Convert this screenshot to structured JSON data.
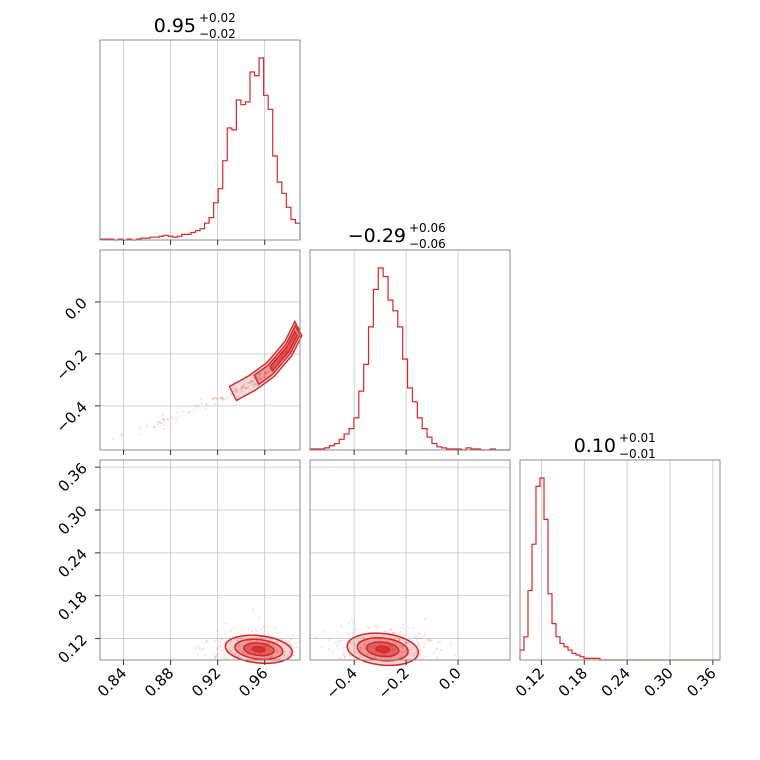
{
  "chart_data": {
    "type": "corner",
    "color": "#d62728",
    "parameters": 3,
    "titles": [
      {
        "value": "0.95",
        "plus": "+0.02",
        "minus": "−0.02"
      },
      {
        "value": "−0.29",
        "plus": "+0.06",
        "minus": "−0.06"
      },
      {
        "value": "0.10",
        "plus": "+0.01",
        "minus": "−0.01"
      }
    ],
    "ranges": [
      [
        0.82,
        0.99
      ],
      [
        -0.57,
        0.2
      ],
      [
        0.09,
        0.37
      ]
    ],
    "ticks": [
      {
        "values": [
          0.84,
          0.88,
          0.92,
          0.96
        ],
        "labels": [
          "0.84",
          "0.88",
          "0.92",
          "0.96"
        ]
      },
      {
        "values": [
          -0.4,
          -0.2,
          0.0
        ],
        "labels": [
          "−0.4",
          "−0.2",
          "0.0"
        ]
      },
      {
        "values": [
          0.12,
          0.18,
          0.24,
          0.3,
          0.36
        ],
        "labels": [
          "0.12",
          "0.18",
          "0.24",
          "0.30",
          "0.36"
        ]
      }
    ],
    "histograms": [
      {
        "edges": [
          0.82,
          0.99
        ],
        "counts": [
          1,
          1,
          1,
          0,
          1,
          0,
          1,
          0,
          1,
          2,
          2,
          3,
          3,
          4,
          5,
          4,
          3,
          4,
          6,
          6,
          8,
          10,
          12,
          18,
          24,
          40,
          55,
          85,
          120,
          118,
          150,
          145,
          148,
          180,
          176,
          195,
          155,
          140,
          90,
          62,
          50,
          35,
          22,
          18
        ]
      },
      {
        "edges": [
          -0.57,
          0.2
        ],
        "counts": [
          1,
          1,
          1,
          2,
          4,
          6,
          10,
          15,
          20,
          30,
          55,
          80,
          115,
          150,
          170,
          162,
          140,
          130,
          115,
          85,
          58,
          45,
          30,
          20,
          12,
          6,
          3,
          2,
          1,
          1,
          1,
          0,
          2,
          1,
          1,
          0,
          0,
          1,
          0,
          0,
          0
        ]
      },
      {
        "edges": [
          0.09,
          0.37
        ],
        "counts": [
          6,
          14,
          42,
          70,
          105,
          110,
          85,
          40,
          22,
          14,
          10,
          8,
          6,
          4,
          3,
          2,
          1,
          1,
          1,
          1,
          0,
          0,
          0,
          0,
          0,
          0,
          0,
          0,
          0,
          0,
          0,
          0,
          0,
          0,
          0,
          0,
          0,
          0,
          0,
          0,
          0,
          0,
          0,
          0,
          0,
          0,
          0,
          0,
          0,
          0
        ]
      }
    ],
    "scatter": {
      "x1_x0": {
        "trend": [
          [
            0.83,
            -0.53
          ],
          [
            0.87,
            -0.47
          ],
          [
            0.9,
            -0.41
          ],
          [
            0.93,
            -0.36
          ],
          [
            0.95,
            -0.31
          ],
          [
            0.965,
            -0.26
          ],
          [
            0.98,
            -0.18
          ],
          [
            0.99,
            -0.09
          ]
        ]
      },
      "x2_x0": {
        "center": [
          0.955,
          0.105
        ]
      },
      "x2_x1": {
        "center": [
          -0.29,
          0.105
        ]
      }
    }
  }
}
